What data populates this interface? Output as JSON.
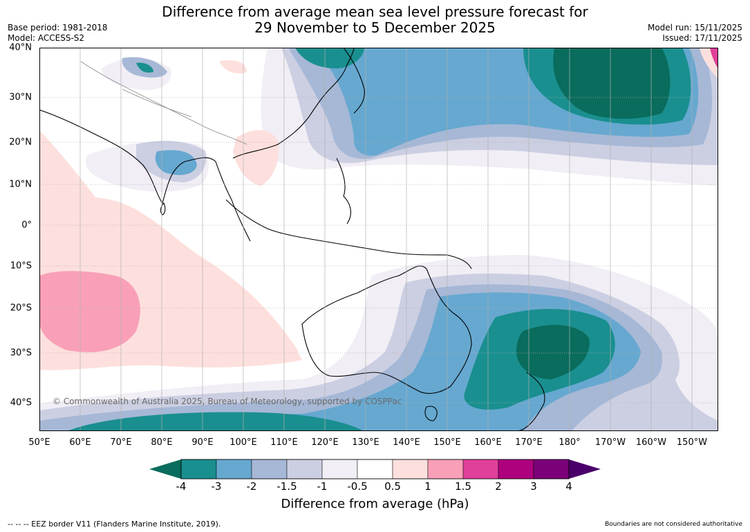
{
  "header": {
    "title_line1": "Difference from average mean sea level pressure forecast for",
    "title_line2": "29 November to 5 December 2025",
    "base_period": "Base period: 1981-2018",
    "model": "Model: ACCESS-S2",
    "model_run": "Model run: 15/11/2025",
    "issued": "Issued: 17/11/2025"
  },
  "map": {
    "copyright": "© Commonwealth of Australia 2025, Bureau of Meteorology, supported by COSPPac",
    "longitude_labels": [
      "50°E",
      "60°E",
      "70°E",
      "80°E",
      "90°E",
      "100°E",
      "110°E",
      "120°E",
      "130°E",
      "140°E",
      "150°E",
      "160°E",
      "170°E",
      "180°",
      "170°W",
      "160°W",
      "150°W"
    ],
    "latitude_labels": [
      "40°N",
      "30°N",
      "20°N",
      "10°N",
      "0°",
      "10°S",
      "20°S",
      "30°S",
      "40°S"
    ]
  },
  "colorbar": {
    "title": "Difference from average (hPa)",
    "tick_labels": [
      "-4",
      "-3",
      "-2",
      "-1.5",
      "-1",
      "-0.5",
      "0.5",
      "1",
      "1.5",
      "2",
      "3",
      "4"
    ],
    "colors": [
      "#1a8f8f",
      "#66a8d0",
      "#a6b8d6",
      "#cccfe2",
      "#f1eef5",
      "#ffffff",
      "#fde0dd",
      "#f9a0b8",
      "#e0409a",
      "#ae017e",
      "#7a0177"
    ],
    "under_color": "#096c5c",
    "over_color": "#49006a"
  },
  "footer": {
    "eez_note": "--  --  -- EEZ border V11 (Flanders Marine Institute, 2019).",
    "boundaries_note": "Boundaries are not considered authoritative"
  }
}
